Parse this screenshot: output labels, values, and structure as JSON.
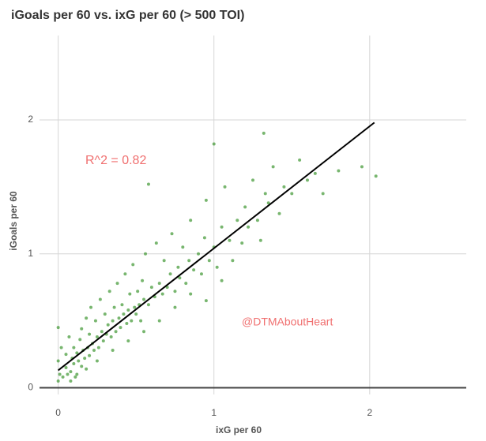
{
  "chart_data": {
    "type": "scatter",
    "title": "iGoals per 60 vs. ixG per 60 (> 500 TOI)",
    "x_label": "ixG per 60",
    "y_label": "iGoals per 60",
    "annotations": [
      "R^2 = 0.82",
      "@DTMAboutHeart"
    ],
    "xlim": [
      -0.12,
      2.62
    ],
    "ylim": [
      -0.05,
      2.63
    ],
    "xticks": [
      0,
      1,
      2
    ],
    "yticks": [
      0,
      1,
      2
    ],
    "grid": true,
    "series": [
      {
        "color": "#2f8f22",
        "x": [
          0,
          0,
          0,
          0.01,
          0.02,
          0.03,
          0.05,
          0.05,
          0.06,
          0.07,
          0.08,
          0.09,
          0.1,
          0.1,
          0.11,
          0.12,
          0.13,
          0.14,
          0.15,
          0.15,
          0.16,
          0.17,
          0.18,
          0.19,
          0.2,
          0.2,
          0.21,
          0.22,
          0.23,
          0.24,
          0.25,
          0.26,
          0.27,
          0.28,
          0.29,
          0.3,
          0.31,
          0.32,
          0.33,
          0.34,
          0.35,
          0.36,
          0.37,
          0.38,
          0.39,
          0.4,
          0.41,
          0.42,
          0.43,
          0.44,
          0.45,
          0.46,
          0.47,
          0.48,
          0.49,
          0.5,
          0.51,
          0.52,
          0.53,
          0.54,
          0.55,
          0.56,
          0.58,
          0.6,
          0.62,
          0.63,
          0.65,
          0.67,
          0.68,
          0.7,
          0.72,
          0.73,
          0.75,
          0.77,
          0.78,
          0.8,
          0.82,
          0.84,
          0.85,
          0.87,
          0.9,
          0.92,
          0.94,
          0.95,
          0.97,
          1.0,
          1.02,
          1.05,
          1.07,
          1.1,
          1.12,
          1.15,
          1.18,
          1.2,
          1.22,
          1.25,
          1.28,
          1.3,
          1.33,
          1.35,
          1.38,
          1.42,
          1.45,
          1.5,
          1.55,
          1.6,
          1.65,
          1.7,
          1.8,
          1.95,
          2.04,
          0.08,
          0.12,
          0.18,
          0.25,
          0.35,
          0.45,
          0.55,
          0.65,
          0.75,
          0.85,
          0.95,
          1.05,
          0.58,
          1.0,
          1.32
        ],
        "values": [
          0.05,
          0.45,
          0.2,
          0.1,
          0.3,
          0.08,
          0.15,
          0.25,
          0.1,
          0.38,
          0.12,
          0.22,
          0.18,
          0.3,
          0.08,
          0.26,
          0.2,
          0.36,
          0.16,
          0.44,
          0.28,
          0.22,
          0.52,
          0.3,
          0.24,
          0.4,
          0.6,
          0.33,
          0.28,
          0.5,
          0.38,
          0.3,
          0.66,
          0.42,
          0.35,
          0.55,
          0.4,
          0.47,
          0.72,
          0.38,
          0.5,
          0.6,
          0.42,
          0.78,
          0.52,
          0.45,
          0.62,
          0.55,
          0.85,
          0.48,
          0.58,
          0.7,
          0.5,
          0.92,
          0.6,
          0.55,
          0.72,
          0.62,
          0.5,
          0.8,
          0.66,
          1.0,
          0.62,
          0.75,
          0.68,
          1.08,
          0.78,
          0.7,
          0.95,
          0.75,
          0.85,
          1.15,
          0.72,
          0.9,
          0.82,
          1.05,
          0.78,
          0.95,
          1.25,
          0.88,
          1.0,
          0.85,
          1.12,
          1.4,
          0.95,
          1.05,
          0.9,
          1.2,
          1.5,
          1.1,
          0.95,
          1.25,
          1.08,
          1.35,
          1.2,
          1.55,
          1.25,
          1.1,
          1.45,
          1.38,
          1.65,
          1.3,
          1.5,
          1.45,
          1.7,
          1.55,
          1.6,
          1.45,
          1.62,
          1.65,
          1.58,
          0.05,
          0.1,
          0.14,
          0.2,
          0.28,
          0.35,
          0.42,
          0.5,
          0.6,
          0.7,
          0.65,
          0.8,
          1.52,
          1.82,
          1.9
        ]
      }
    ],
    "trend_line": {
      "color": "#000000",
      "x": [
        0,
        2.03
      ],
      "values": [
        0.13,
        1.98
      ]
    }
  }
}
